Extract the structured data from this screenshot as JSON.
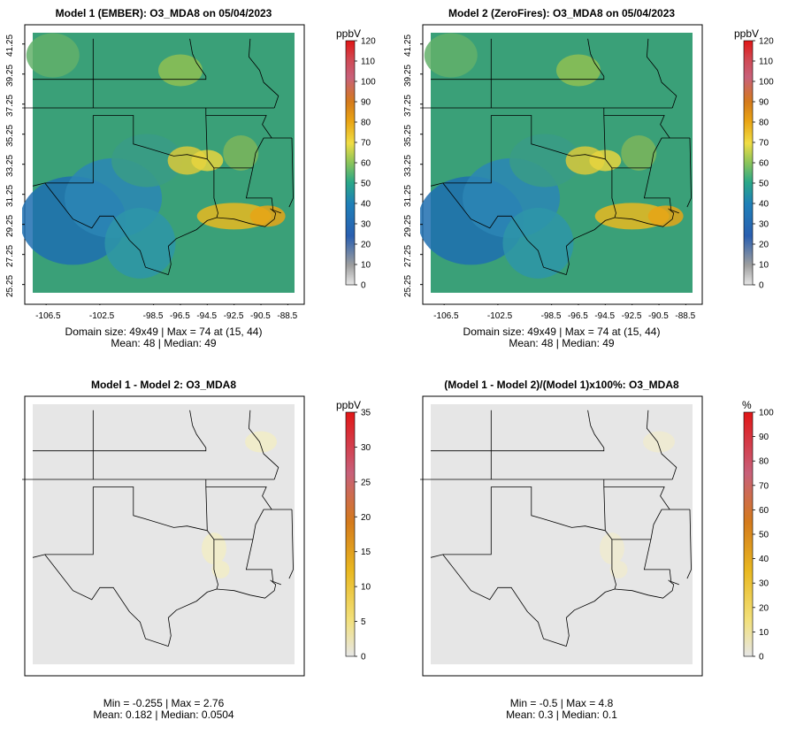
{
  "panels": [
    {
      "kind": "model",
      "title": "Model 1 (EMBER): O3_MDA8 on 05/04/2023",
      "stats_line1": "Domain size: 49x49 | Max = 74 at (15, 44)",
      "stats_line2": "Mean: 48 |  Median: 49",
      "colorbar": {
        "unit": "ppbV",
        "ticks": [
          "120",
          "110",
          "100",
          "90",
          "80",
          "70",
          "60",
          "50",
          "40",
          "30",
          "20",
          "10",
          "0"
        ]
      },
      "x_ticks": [
        "-106.5",
        "-102.5",
        "-98.5",
        "-96.5",
        "-94.5",
        "-92.5",
        "-90.5",
        "-88.5"
      ],
      "y_ticks": [
        "41.25",
        "39.25",
        "37.25",
        "35.25",
        "33.25",
        "31.25",
        "29.25",
        "27.25",
        "25.25"
      ]
    },
    {
      "kind": "model",
      "title": "Model 2 (ZeroFires): O3_MDA8 on 05/04/2023",
      "stats_line1": "Domain size: 49x49 | Max = 74 at (15, 44)",
      "stats_line2": "Mean: 48 |  Median: 49",
      "colorbar": {
        "unit": "ppbV",
        "ticks": [
          "120",
          "110",
          "100",
          "90",
          "80",
          "70",
          "60",
          "50",
          "40",
          "30",
          "20",
          "10",
          "0"
        ]
      },
      "x_ticks": [
        "-106.5",
        "-102.5",
        "-98.5",
        "-96.5",
        "-94.5",
        "-92.5",
        "-90.5",
        "-88.5"
      ],
      "y_ticks": [
        "41.25",
        "39.25",
        "37.25",
        "35.25",
        "33.25",
        "31.25",
        "29.25",
        "27.25",
        "25.25"
      ]
    },
    {
      "kind": "diff",
      "title": "Model 1 - Model 2: O3_MDA8",
      "stats_line1": "Min = -0.255 | Max = 2.76",
      "stats_line2": "Mean: 0.182 |  Median: 0.0504",
      "colorbar": {
        "unit": "ppbV",
        "ticks": [
          "35",
          "30",
          "25",
          "20",
          "15",
          "10",
          "5",
          "0"
        ]
      }
    },
    {
      "kind": "pct",
      "title": "(Model 1 - Model 2)/(Model 1)x100%: O3_MDA8",
      "stats_line1": "Min = -0.5 | Max = 4.8",
      "stats_line2": "Mean: 0.3 |  Median: 0.1",
      "colorbar": {
        "unit": "%",
        "ticks": [
          "100",
          "90",
          "80",
          "70",
          "60",
          "50",
          "40",
          "30",
          "20",
          "10",
          "0"
        ]
      }
    }
  ],
  "colors": {
    "panel_bg_diff": "#e6e6e6",
    "boundary_line": "#000000"
  }
}
